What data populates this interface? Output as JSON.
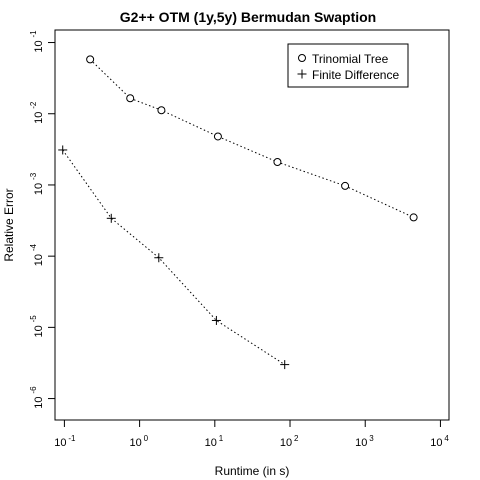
{
  "chart_data": {
    "type": "scatter",
    "title": "G2++ OTM (1y,5y) Bermudan Swaption",
    "xlabel": "Runtime (in s)",
    "ylabel": "Relative Error",
    "xscale": "log",
    "yscale": "log",
    "xlim": [
      0.075,
      13000
    ],
    "ylim": [
      5e-07,
      0.15
    ],
    "xticks": [
      {
        "value": 0.1,
        "base": "10",
        "exp": "-1"
      },
      {
        "value": 1,
        "base": "10",
        "exp": "0"
      },
      {
        "value": 10,
        "base": "10",
        "exp": "1"
      },
      {
        "value": 100,
        "base": "10",
        "exp": "2"
      },
      {
        "value": 1000,
        "base": "10",
        "exp": "3"
      },
      {
        "value": 10000,
        "base": "10",
        "exp": "4"
      }
    ],
    "yticks": [
      {
        "value": 1e-06,
        "base": "10",
        "exp": "-6"
      },
      {
        "value": 1e-05,
        "base": "10",
        "exp": "-5"
      },
      {
        "value": 0.0001,
        "base": "10",
        "exp": "-4"
      },
      {
        "value": 0.001,
        "base": "10",
        "exp": "-3"
      },
      {
        "value": 0.01,
        "base": "10",
        "exp": "-2"
      },
      {
        "value": 0.1,
        "base": "10",
        "exp": "-1"
      }
    ],
    "grid": false,
    "legend_position": "top-right",
    "series": [
      {
        "name": "Trinomial Tree",
        "marker": "circle",
        "line": "dotted",
        "x": [
          0.22,
          0.75,
          1.95,
          11,
          68,
          540,
          4400
        ],
        "y": [
          0.058,
          0.0165,
          0.0112,
          0.0048,
          0.0021,
          0.00097,
          0.00035
        ]
      },
      {
        "name": "Finite Difference",
        "marker": "plus",
        "line": "dotted",
        "x": [
          0.095,
          0.42,
          1.8,
          10.5,
          85
        ],
        "y": [
          0.0031,
          0.00034,
          9.5e-05,
          1.25e-05,
          3e-06
        ]
      }
    ]
  }
}
